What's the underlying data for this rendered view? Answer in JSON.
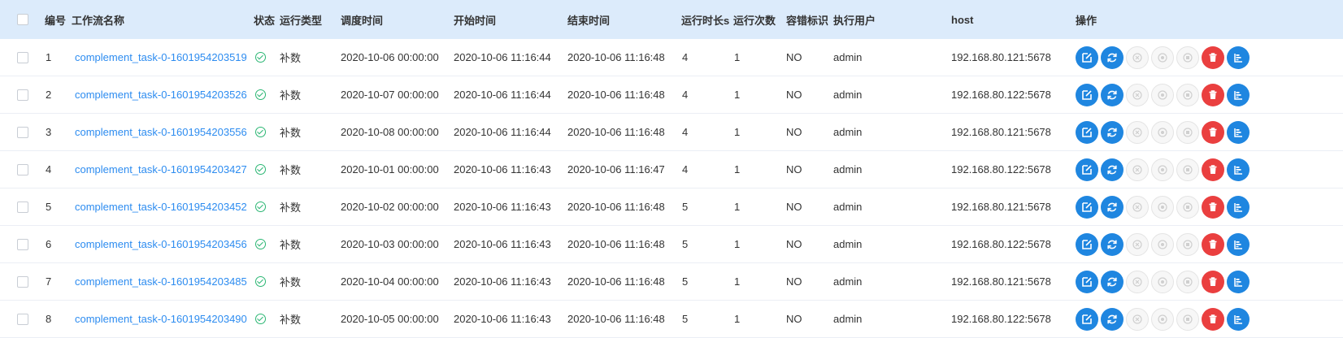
{
  "headers": {
    "id": "编号",
    "name": "工作流名称",
    "state": "状态",
    "run_type": "运行类型",
    "schedule_time": "调度时间",
    "start_time": "开始时间",
    "end_time": "结束时间",
    "duration": "运行时长s",
    "run_times": "运行次数",
    "recovery": "容错标识",
    "executor": "执行用户",
    "host": "host",
    "operation": "操作"
  },
  "state_icon": "check-circle-icon",
  "colors": {
    "link": "#2d8cf0",
    "success": "#2bb673",
    "primary": "#1f86e0",
    "danger": "#ea3f3f",
    "header_bg": "#dcebfb"
  },
  "action_icons": [
    "edit-icon",
    "rerun-icon",
    "stop-icon",
    "pause-icon",
    "recover-icon",
    "delete-icon",
    "gantt-icon"
  ],
  "rows": [
    {
      "id": "1",
      "name": "complement_task-0-1601954203519",
      "run_type": "补数",
      "schedule_time": "2020-10-06 00:00:00",
      "start_time": "2020-10-06 11:16:44",
      "end_time": "2020-10-06 11:16:48",
      "duration": "4",
      "run_times": "1",
      "recovery": "NO",
      "executor": "admin",
      "host": "192.168.80.121:5678"
    },
    {
      "id": "2",
      "name": "complement_task-0-1601954203526",
      "run_type": "补数",
      "schedule_time": "2020-10-07 00:00:00",
      "start_time": "2020-10-06 11:16:44",
      "end_time": "2020-10-06 11:16:48",
      "duration": "4",
      "run_times": "1",
      "recovery": "NO",
      "executor": "admin",
      "host": "192.168.80.122:5678"
    },
    {
      "id": "3",
      "name": "complement_task-0-1601954203556",
      "run_type": "补数",
      "schedule_time": "2020-10-08 00:00:00",
      "start_time": "2020-10-06 11:16:44",
      "end_time": "2020-10-06 11:16:48",
      "duration": "4",
      "run_times": "1",
      "recovery": "NO",
      "executor": "admin",
      "host": "192.168.80.121:5678"
    },
    {
      "id": "4",
      "name": "complement_task-0-1601954203427",
      "run_type": "补数",
      "schedule_time": "2020-10-01 00:00:00",
      "start_time": "2020-10-06 11:16:43",
      "end_time": "2020-10-06 11:16:47",
      "duration": "4",
      "run_times": "1",
      "recovery": "NO",
      "executor": "admin",
      "host": "192.168.80.122:5678"
    },
    {
      "id": "5",
      "name": "complement_task-0-1601954203452",
      "run_type": "补数",
      "schedule_time": "2020-10-02 00:00:00",
      "start_time": "2020-10-06 11:16:43",
      "end_time": "2020-10-06 11:16:48",
      "duration": "5",
      "run_times": "1",
      "recovery": "NO",
      "executor": "admin",
      "host": "192.168.80.121:5678"
    },
    {
      "id": "6",
      "name": "complement_task-0-1601954203456",
      "run_type": "补数",
      "schedule_time": "2020-10-03 00:00:00",
      "start_time": "2020-10-06 11:16:43",
      "end_time": "2020-10-06 11:16:48",
      "duration": "5",
      "run_times": "1",
      "recovery": "NO",
      "executor": "admin",
      "host": "192.168.80.122:5678"
    },
    {
      "id": "7",
      "name": "complement_task-0-1601954203485",
      "run_type": "补数",
      "schedule_time": "2020-10-04 00:00:00",
      "start_time": "2020-10-06 11:16:43",
      "end_time": "2020-10-06 11:16:48",
      "duration": "5",
      "run_times": "1",
      "recovery": "NO",
      "executor": "admin",
      "host": "192.168.80.121:5678"
    },
    {
      "id": "8",
      "name": "complement_task-0-1601954203490",
      "run_type": "补数",
      "schedule_time": "2020-10-05 00:00:00",
      "start_time": "2020-10-06 11:16:43",
      "end_time": "2020-10-06 11:16:48",
      "duration": "5",
      "run_times": "1",
      "recovery": "NO",
      "executor": "admin",
      "host": "192.168.80.122:5678"
    }
  ]
}
